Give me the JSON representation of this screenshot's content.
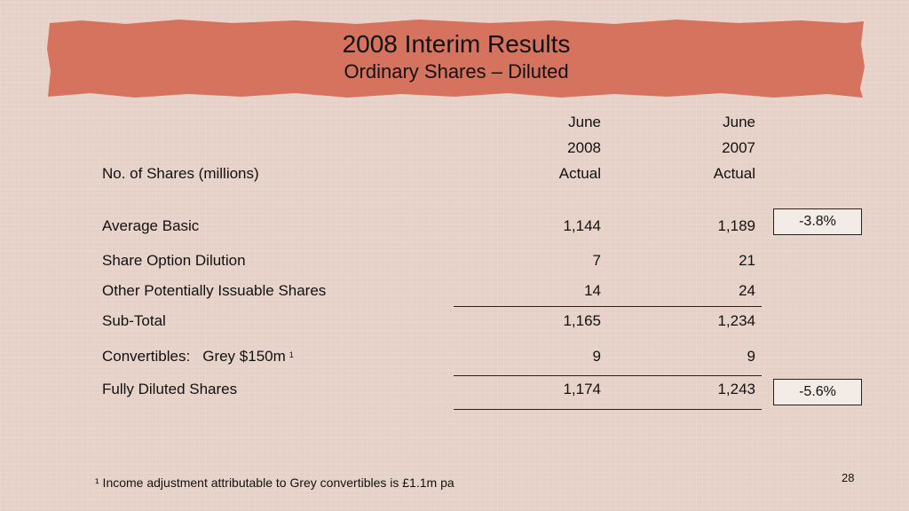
{
  "title": "2008 Interim Results",
  "subtitle": "Ordinary Shares – Diluted",
  "table": {
    "row_header": "No. of Shares (millions)",
    "columns": [
      {
        "month": "June",
        "year": "2008",
        "basis": "Actual"
      },
      {
        "month": "June",
        "year": "2007",
        "basis": "Actual"
      }
    ],
    "rows": [
      {
        "label": "Average Basic",
        "v2008": "1,144",
        "v2007": "1,189"
      },
      {
        "label": "Share Option Dilution",
        "v2008": "7",
        "v2007": "21"
      },
      {
        "label": "Other Potentially Issuable Shares",
        "v2008": "14",
        "v2007": "24"
      },
      {
        "label": "Sub-Total",
        "v2008": "1,165",
        "v2007": "1,234"
      },
      {
        "label": "Convertibles:",
        "label_detail": "Grey $150m",
        "superscript": "1",
        "v2008": "9",
        "v2007": "9"
      },
      {
        "label": "Fully Diluted Shares",
        "v2008": "1,174",
        "v2007": "1,243"
      }
    ],
    "changes": {
      "average_basic": "-3.8%",
      "fully_diluted": "-5.6%"
    }
  },
  "footnote": "¹ Income adjustment attributable to Grey convertibles is £1.1m pa",
  "page_number": "28",
  "colors": {
    "banner": "#d6735f",
    "background": "#e8d3ca"
  }
}
